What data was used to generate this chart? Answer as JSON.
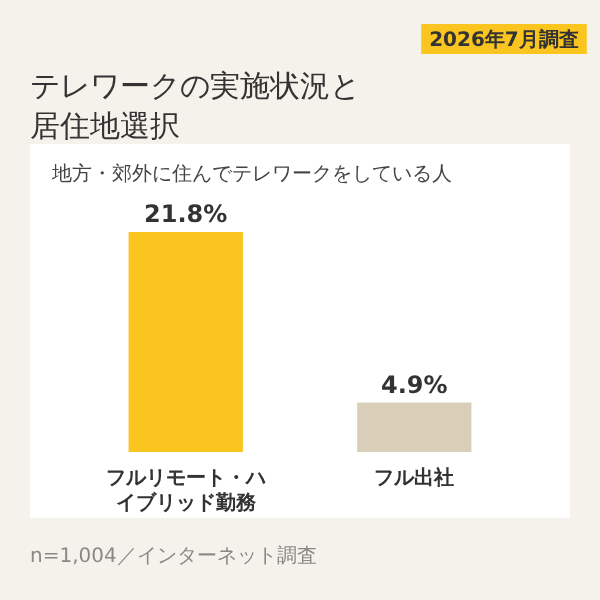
{
  "chart_data": {
    "type": "bar",
    "title": "テレワークの実施状況と居住地選択",
    "subtitle": "地方・郊外に住んでテレワークをしている人",
    "categories": [
      "フルリモート・ハイブリッド勤務",
      "フル出社"
    ],
    "values": [
      21.8,
      4.9
    ],
    "colors": [
      "#f9c51e",
      "#d9cfb9"
    ],
    "value_labels": [
      "21.8%",
      "4.9%"
    ],
    "annotations": [
      "2026年7月調査",
      "n=1,004／インターネット調査"
    ]
  }
}
